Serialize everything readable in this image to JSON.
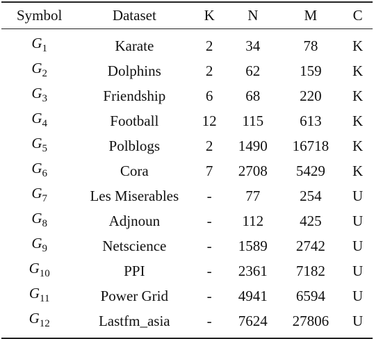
{
  "headers": [
    "Symbol",
    "Dataset",
    "K",
    "N",
    "M",
    "C"
  ],
  "rows": [
    {
      "sym": "G",
      "sub": "1",
      "dataset": "Karate",
      "k": "2",
      "n": "34",
      "m": "78",
      "c": "K"
    },
    {
      "sym": "G",
      "sub": "2",
      "dataset": "Dolphins",
      "k": "2",
      "n": "62",
      "m": "159",
      "c": "K"
    },
    {
      "sym": "G",
      "sub": "3",
      "dataset": "Friendship",
      "k": "6",
      "n": "68",
      "m": "220",
      "c": "K"
    },
    {
      "sym": "G",
      "sub": "4",
      "dataset": "Football",
      "k": "12",
      "n": "115",
      "m": "613",
      "c": "K"
    },
    {
      "sym": "G",
      "sub": "5",
      "dataset": "Polblogs",
      "k": "2",
      "n": "1490",
      "m": "16718",
      "c": "K"
    },
    {
      "sym": "G",
      "sub": "6",
      "dataset": "Cora",
      "k": "7",
      "n": "2708",
      "m": "5429",
      "c": "K"
    },
    {
      "sym": "G",
      "sub": "7",
      "dataset": "Les Miserables",
      "k": "-",
      "n": "77",
      "m": "254",
      "c": "U"
    },
    {
      "sym": "G",
      "sub": "8",
      "dataset": "Adjnoun",
      "k": "-",
      "n": "112",
      "m": "425",
      "c": "U"
    },
    {
      "sym": "G",
      "sub": "9",
      "dataset": "Netscience",
      "k": "-",
      "n": "1589",
      "m": "2742",
      "c": "U"
    },
    {
      "sym": "G",
      "sub": "10",
      "dataset": "PPI",
      "k": "-",
      "n": "2361",
      "m": "7182",
      "c": "U"
    },
    {
      "sym": "G",
      "sub": "11",
      "dataset": "Power Grid",
      "k": "-",
      "n": "4941",
      "m": "6594",
      "c": "U"
    },
    {
      "sym": "G",
      "sub": "12",
      "dataset": "Lastfm_asia",
      "k": "-",
      "n": "7624",
      "m": "27806",
      "c": "U"
    }
  ]
}
